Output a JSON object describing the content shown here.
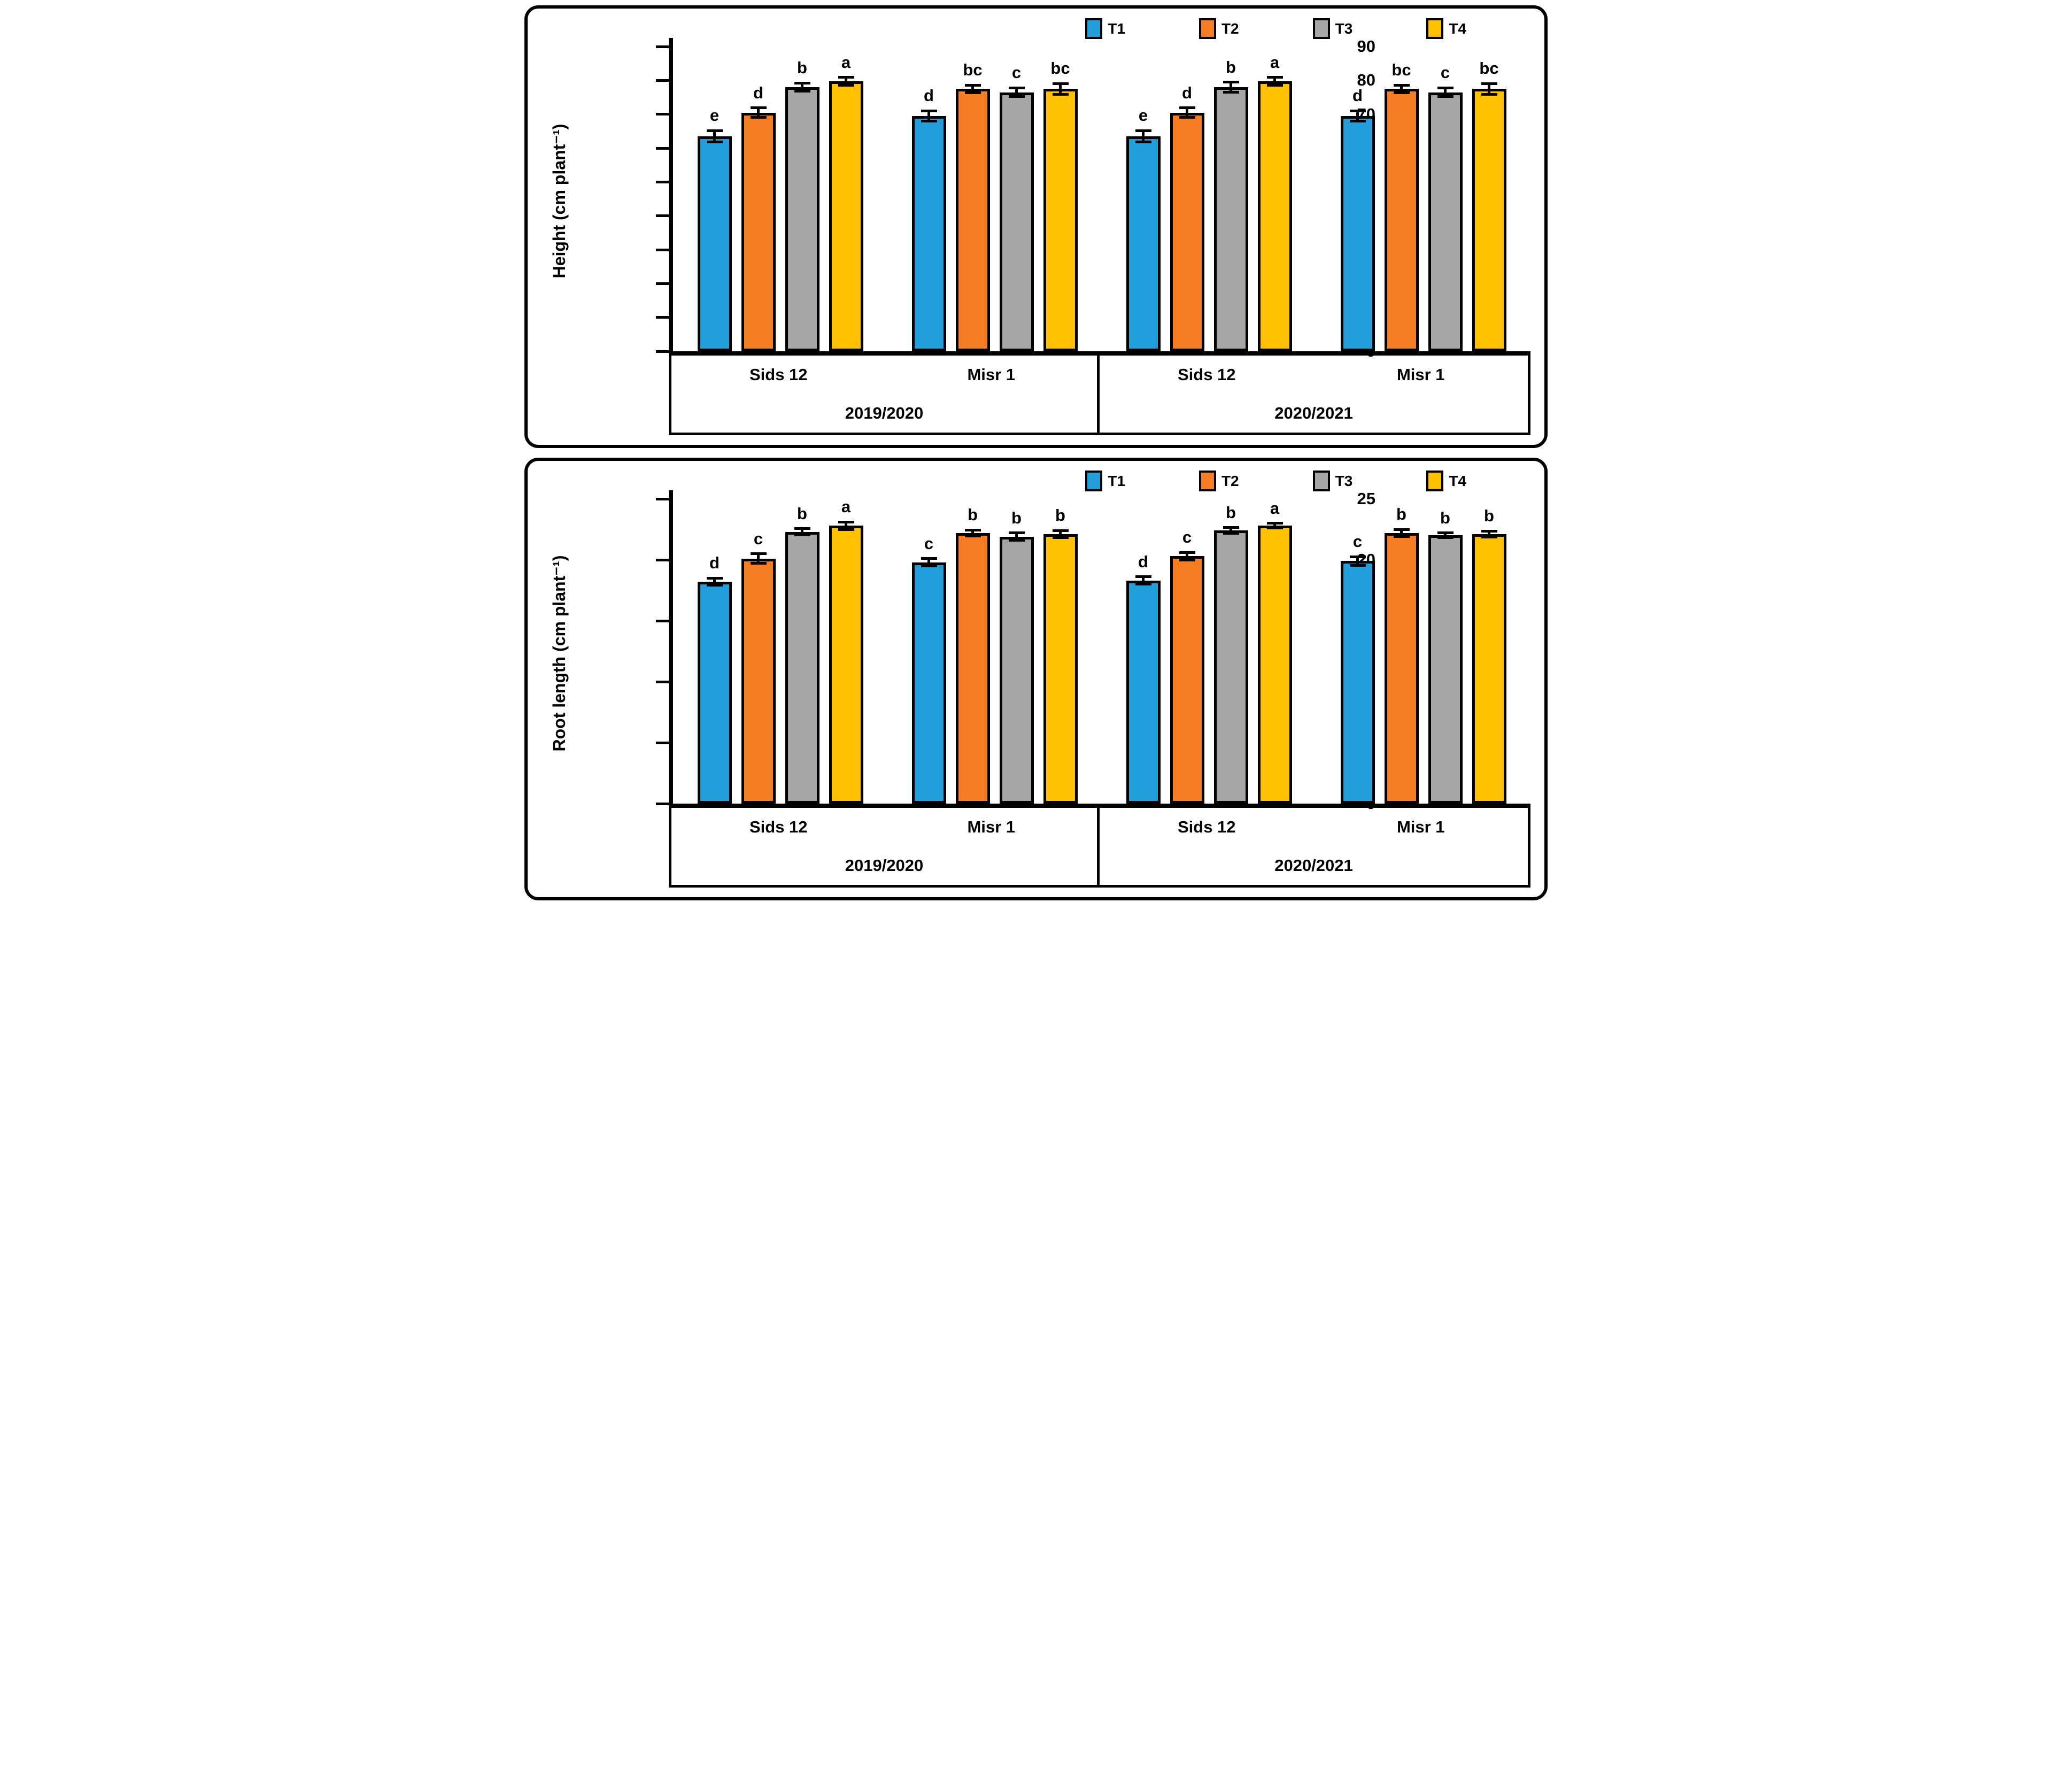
{
  "colors": {
    "t1": "#219FDB",
    "t2": "#F57E25",
    "t3": "#A6A6A6",
    "t4": "#FFC000",
    "axis": "#000000"
  },
  "legend": [
    {
      "label": "T1",
      "color": "#219FDB"
    },
    {
      "label": "T2",
      "color": "#F57E25"
    },
    {
      "label": "T3",
      "color": "#A6A6A6"
    },
    {
      "label": "T4",
      "color": "#FFC000"
    }
  ],
  "chart_data": [
    {
      "type": "bar",
      "title": "",
      "ylabel": "Height (cm plant⁻¹)",
      "xlabel": "",
      "ylim": [
        0,
        90
      ],
      "yticks": [
        0,
        10,
        20,
        30,
        40,
        50,
        60,
        70,
        80,
        90
      ],
      "grid": false,
      "legend_position": "top-right",
      "group_labels": [
        "Sids 12",
        "Misr 1",
        "Sids 12",
        "Misr 1"
      ],
      "year_labels": [
        "2019/2020",
        "2020/2021"
      ],
      "series": [
        {
          "name": "T1",
          "color": "#219FDB",
          "values": [
            63.5,
            69.5,
            63.5,
            69.5
          ],
          "errors": [
            1.7,
            1.5,
            1.7,
            1.5
          ],
          "letters": [
            "e",
            "d",
            "e",
            "d"
          ]
        },
        {
          "name": "T2",
          "color": "#F57E25",
          "values": [
            70.5,
            77.5,
            70.5,
            77.5
          ],
          "errors": [
            1.4,
            1.1,
            1.4,
            1.1
          ],
          "letters": [
            "d",
            "bc",
            "d",
            "bc"
          ]
        },
        {
          "name": "T3",
          "color": "#A6A6A6",
          "values": [
            78.0,
            76.5,
            78.0,
            76.5
          ],
          "errors": [
            1.2,
            1.3,
            1.5,
            1.3
          ],
          "letters": [
            "b",
            "c",
            "b",
            "c"
          ]
        },
        {
          "name": "T4",
          "color": "#FFC000",
          "values": [
            79.7,
            77.5,
            79.7,
            77.5
          ],
          "errors": [
            1.2,
            1.6,
            1.2,
            1.6
          ],
          "letters": [
            "a",
            "bc",
            "a",
            "bc"
          ]
        }
      ]
    },
    {
      "type": "bar",
      "title": "",
      "ylabel": "Root length (cm  plant⁻¹)",
      "xlabel": "",
      "ylim": [
        0,
        25
      ],
      "yticks": [
        0,
        5,
        10,
        15,
        20,
        25
      ],
      "grid": false,
      "legend_position": "top-right",
      "group_labels": [
        "Sids 12",
        "Misr 1",
        "Sids 12",
        "Misr 1"
      ],
      "year_labels": [
        "2019/2020",
        "2020/2021"
      ],
      "series": [
        {
          "name": "T1",
          "color": "#219FDB",
          "values": [
            18.2,
            19.8,
            18.3,
            19.9
          ],
          "errors": [
            0.3,
            0.3,
            0.3,
            0.35
          ],
          "letters": [
            "d",
            "c",
            "d",
            "c"
          ]
        },
        {
          "name": "T2",
          "color": "#F57E25",
          "values": [
            20.1,
            22.2,
            20.3,
            22.2
          ],
          "errors": [
            0.4,
            0.25,
            0.3,
            0.3
          ],
          "letters": [
            "c",
            "b",
            "c",
            "b"
          ]
        },
        {
          "name": "T3",
          "color": "#A6A6A6",
          "values": [
            22.3,
            21.9,
            22.4,
            22.0
          ],
          "errors": [
            0.25,
            0.3,
            0.25,
            0.2
          ],
          "letters": [
            "b",
            "b",
            "b",
            "b"
          ]
        },
        {
          "name": "T4",
          "color": "#FFC000",
          "values": [
            22.8,
            22.1,
            22.8,
            22.1
          ],
          "errors": [
            0.3,
            0.3,
            0.2,
            0.25
          ],
          "letters": [
            "a",
            "b",
            "a",
            "b"
          ]
        }
      ]
    }
  ]
}
